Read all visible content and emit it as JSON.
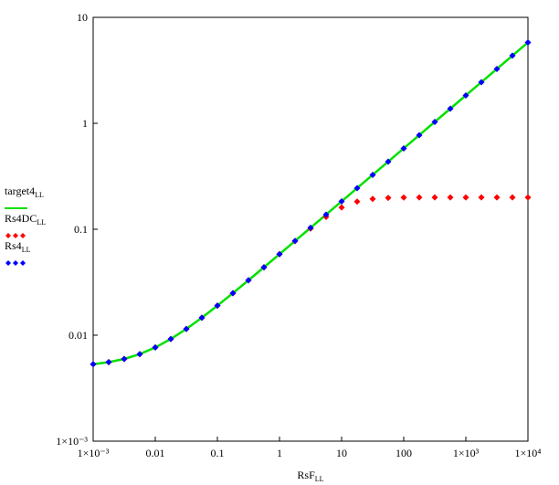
{
  "chart_data": {
    "type": "scatter",
    "log_x": true,
    "log_y": true,
    "xlabel": "RsF",
    "xlabel_subscript": "LL",
    "x": [
      0.001,
      0.001778,
      0.003162,
      0.005623,
      0.01,
      0.01778,
      0.03162,
      0.05623,
      0.1,
      0.1778,
      0.3162,
      0.5623,
      1,
      1.778,
      3.162,
      5.623,
      10,
      17.78,
      31.62,
      56.23,
      100,
      177.8,
      316.2,
      562.3,
      1000,
      1778,
      3162,
      5623,
      10000
    ],
    "series": [
      {
        "name": "target4",
        "subscript": "LL",
        "color": "#00e000",
        "style": "line",
        "values": [
          0.00533,
          0.00557,
          0.00597,
          0.00663,
          0.00766,
          0.00921,
          0.01146,
          0.01463,
          0.019,
          0.02495,
          0.033,
          0.04375,
          0.0582,
          0.0776,
          0.1032,
          0.1375,
          0.1834,
          0.2445,
          0.326,
          0.4347,
          0.58,
          0.773,
          1.031,
          1.374,
          1.833,
          2.444,
          3.26,
          4.35,
          5.8
        ]
      },
      {
        "name": "Rs4DC",
        "subscript": "LL",
        "color": "#ff0000",
        "style": "markers",
        "values": [
          0.00533,
          0.00557,
          0.00597,
          0.00663,
          0.00766,
          0.00921,
          0.01146,
          0.01463,
          0.019,
          0.02495,
          0.033,
          0.04375,
          0.0582,
          0.0772,
          0.1015,
          0.1308,
          0.1606,
          0.1824,
          0.1934,
          0.1979,
          0.1993,
          0.1998,
          0.2,
          0.2,
          0.2,
          0.2,
          0.2,
          0.2,
          0.2
        ]
      },
      {
        "name": "Rs4",
        "subscript": "LL",
        "color": "#0000ff",
        "style": "markers",
        "values": [
          0.00533,
          0.00557,
          0.00597,
          0.00663,
          0.00766,
          0.00921,
          0.01146,
          0.01463,
          0.019,
          0.02495,
          0.033,
          0.04375,
          0.0582,
          0.0776,
          0.1032,
          0.1375,
          0.1834,
          0.2445,
          0.326,
          0.4347,
          0.58,
          0.773,
          1.031,
          1.374,
          1.833,
          2.444,
          3.26,
          4.35,
          5.8
        ]
      }
    ],
    "xlim": [
      0.001,
      10000
    ],
    "ylim": [
      0.001,
      10
    ],
    "xticks": [
      {
        "value": 0.001,
        "label": "1×10⁻³"
      },
      0.01,
      0.1,
      1,
      10,
      100,
      {
        "value": 1000,
        "label": "1×10³"
      },
      {
        "value": 10000,
        "label": "1×10⁴"
      }
    ],
    "yticks": [
      {
        "value": 0.001,
        "label": "1×10⁻³"
      },
      0.01,
      0.1,
      1,
      10
    ],
    "grid": false,
    "legend": "left"
  }
}
